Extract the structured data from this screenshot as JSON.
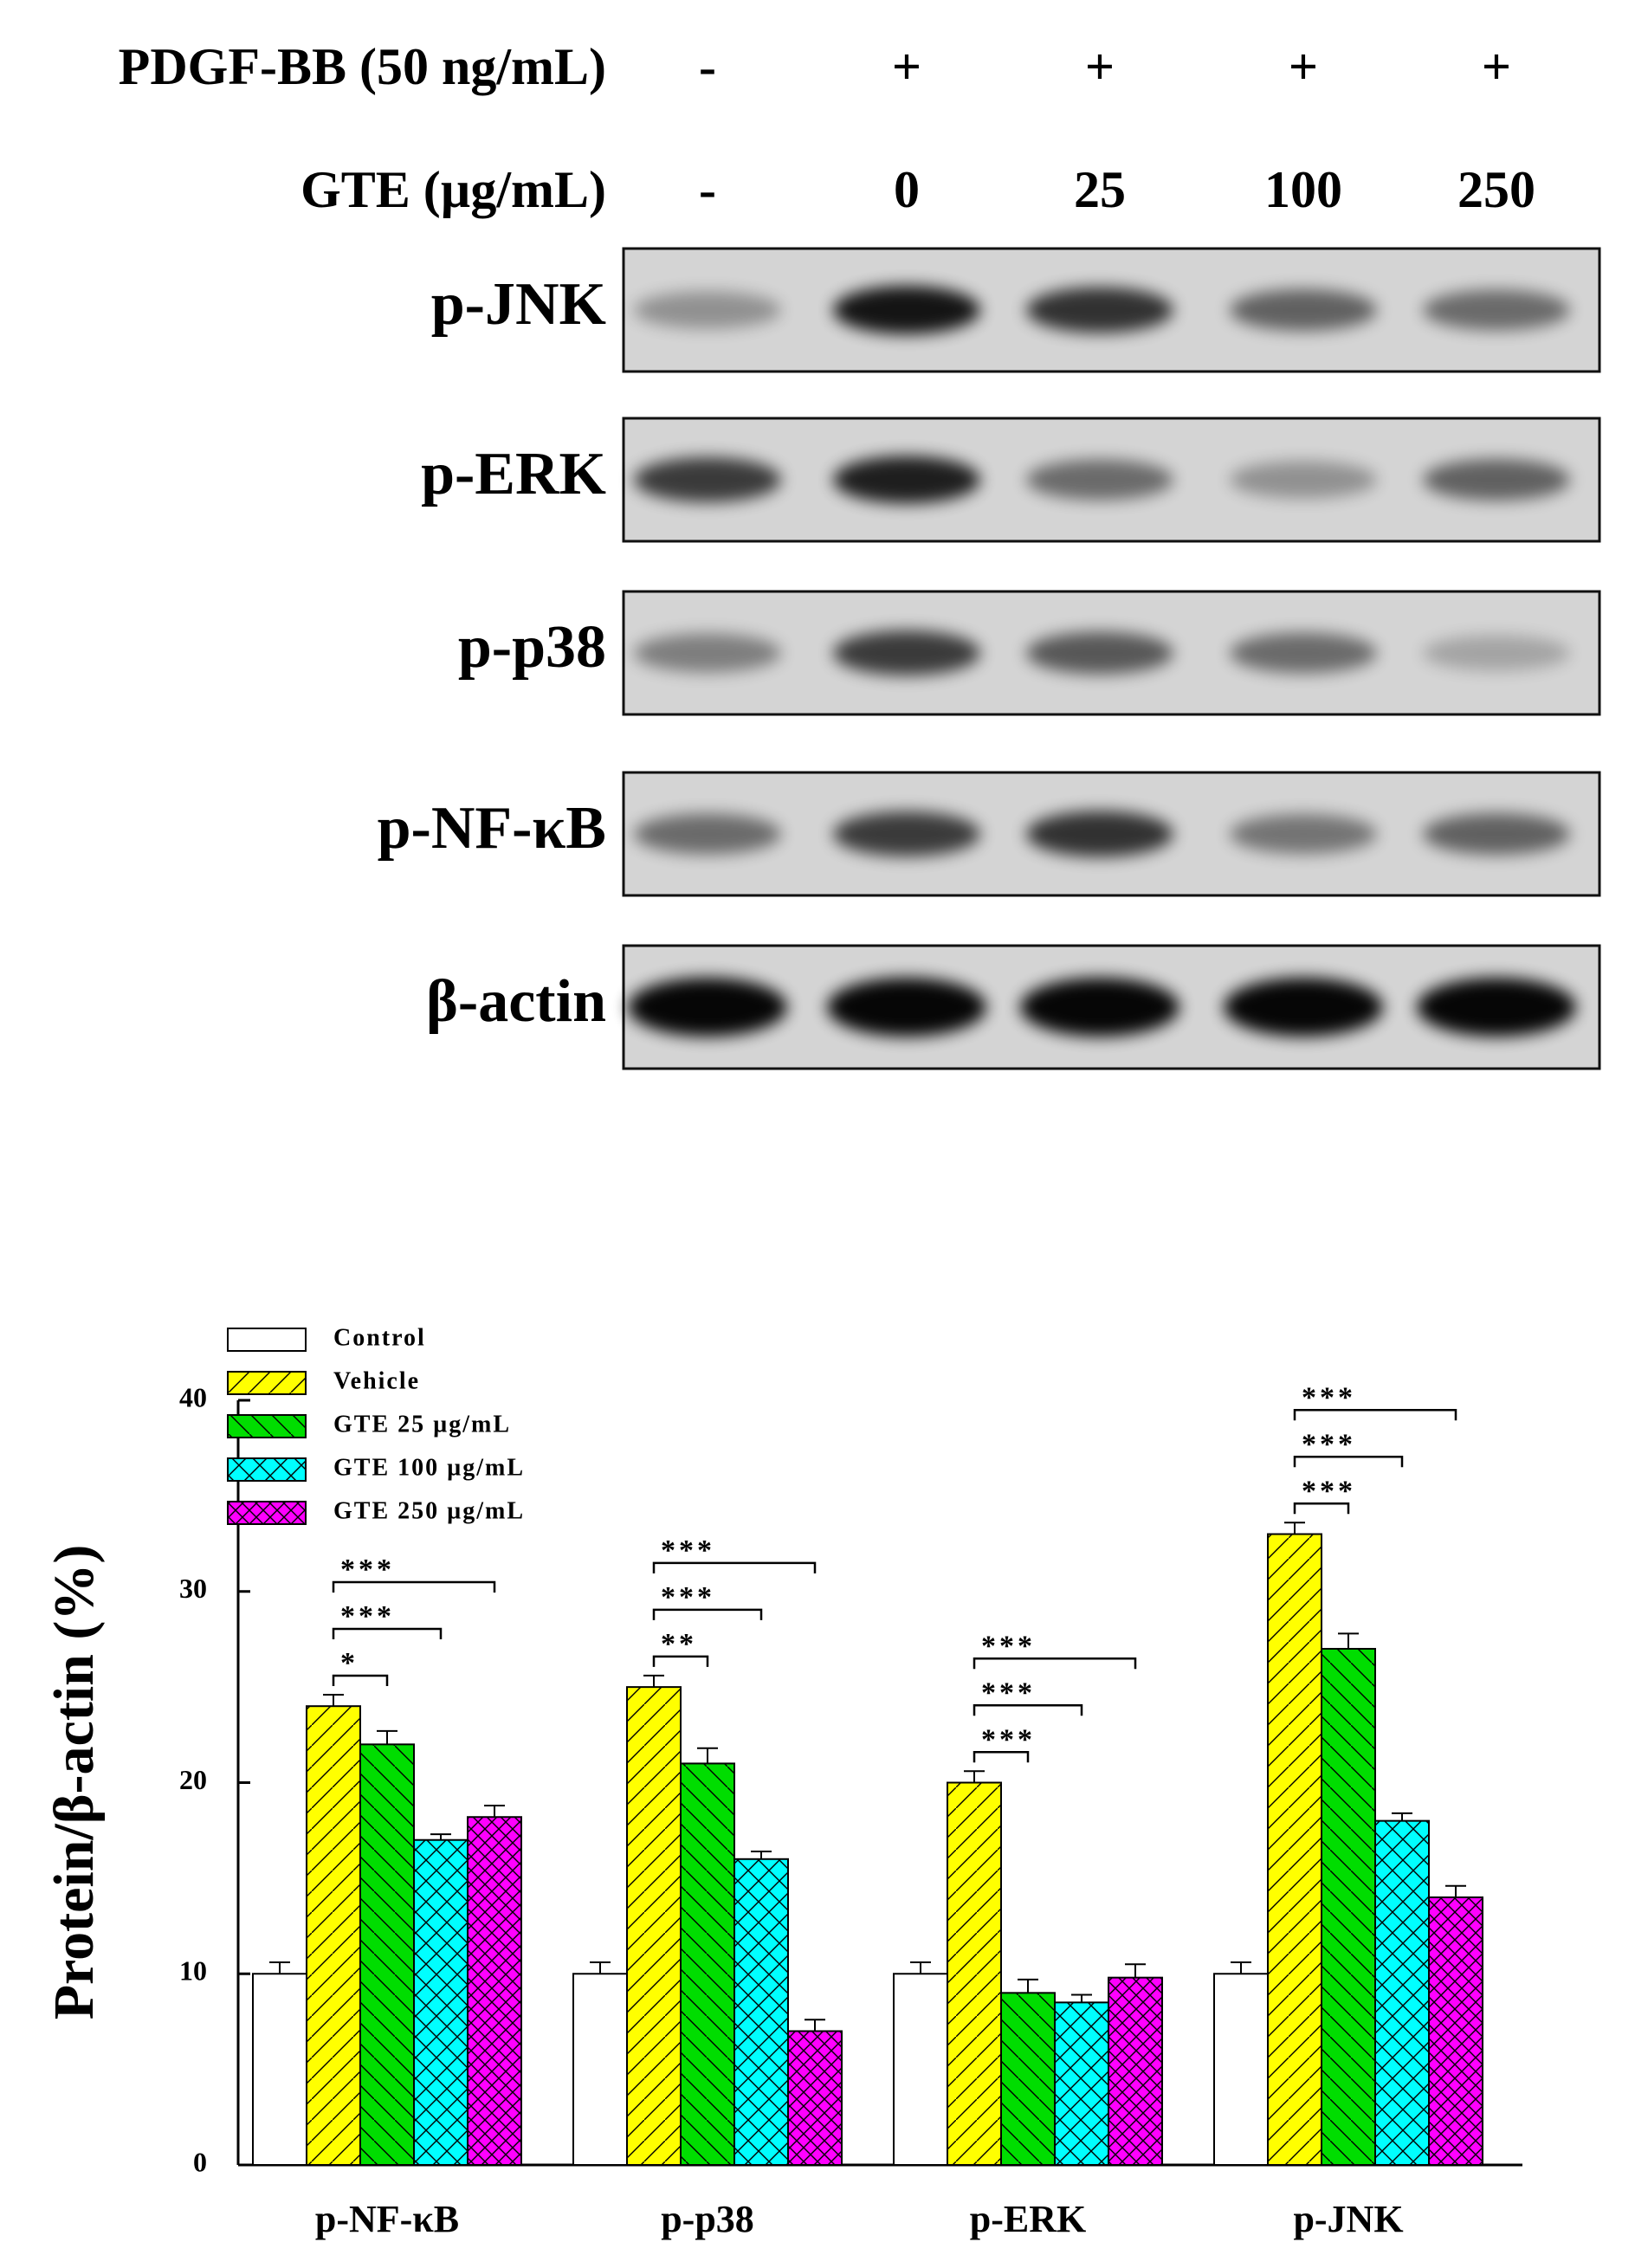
{
  "blot": {
    "treatments": [
      {
        "label": "PDGF-BB (50 ng/mL)",
        "lanes": [
          "-",
          "+",
          "+",
          "+",
          "+"
        ]
      },
      {
        "label": "GTE (µg/mL)",
        "lanes": [
          "-",
          "0",
          "25",
          "100",
          "250"
        ]
      }
    ],
    "rows": [
      "p-JNK",
      "p-ERK",
      "p-p38",
      "p-NF-κB",
      "β-actin"
    ]
  },
  "chart_data": {
    "type": "bar",
    "y_label": "Protein/β-actin (%)",
    "categories": [
      "p-NF-κB",
      "p-p38",
      "p-ERK",
      "p-JNK"
    ],
    "series": [
      {
        "name": "Control",
        "color": "#ffffff",
        "hatch": "",
        "values": [
          10,
          10,
          10,
          10
        ],
        "errors": [
          0.6,
          0.6,
          0.6,
          0.6
        ]
      },
      {
        "name": "Vehicle",
        "color": "#ffff00",
        "hatch": "/",
        "values": [
          24,
          25,
          20,
          33
        ],
        "errors": [
          0.6,
          0.6,
          0.6,
          0.6
        ]
      },
      {
        "name": "GTE 25 µg/mL",
        "color": "#00dd00",
        "hatch": "\\",
        "values": [
          22,
          21,
          9,
          27
        ],
        "errors": [
          0.7,
          0.8,
          0.7,
          0.8
        ]
      },
      {
        "name": "GTE 100 µg/mL",
        "color": "#00ffff",
        "hatch": "x",
        "values": [
          17,
          16,
          8.5,
          18
        ],
        "errors": [
          0.3,
          0.4,
          0.4,
          0.4
        ]
      },
      {
        "name": "GTE 250 µg/mL",
        "color": "#ff00ff",
        "hatch": "xx",
        "values": [
          18.2,
          7,
          9.8,
          14
        ],
        "errors": [
          0.6,
          0.6,
          0.7,
          0.6
        ]
      }
    ],
    "significance": [
      [
        "*",
        "***",
        "***"
      ],
      [
        "**",
        "***",
        "***"
      ],
      [
        "***",
        "***",
        "***"
      ],
      [
        "***",
        "***",
        "***"
      ]
    ],
    "ylim": [
      0,
      40
    ],
    "yticks": [
      0,
      10,
      20,
      30,
      40
    ],
    "legend": "upper left"
  }
}
